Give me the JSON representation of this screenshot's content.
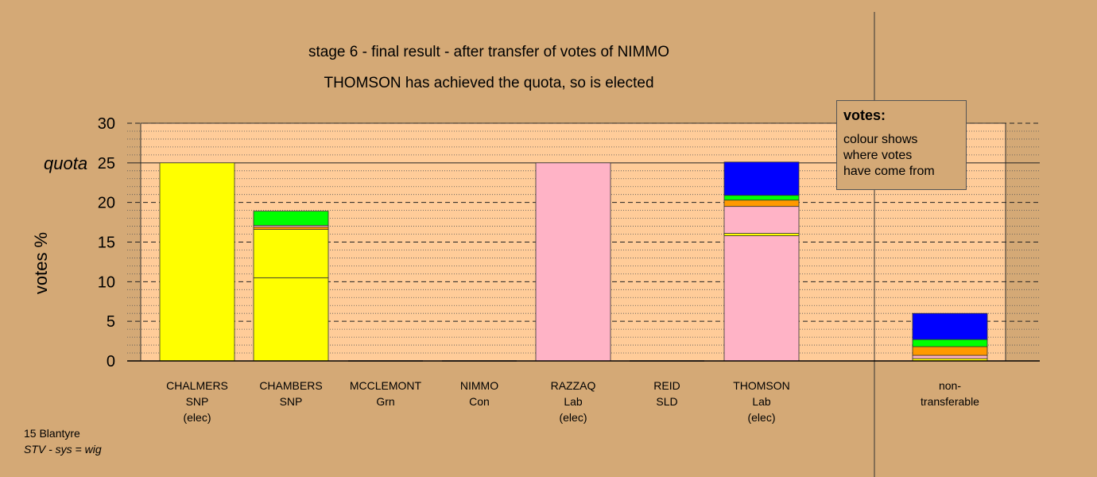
{
  "titles": {
    "line1": "stage 6 - final result - after transfer of votes of NIMMO",
    "line2": "THOMSON has achieved the quota, so is elected"
  },
  "legend": {
    "title": "votes:",
    "lines": [
      "colour shows",
      "where votes",
      "have come from"
    ]
  },
  "footer": {
    "line1": "15 Blantyre",
    "line2": "STV - sys = wig"
  },
  "colors": {
    "background": "#d4a976",
    "plot_background": "#ffcc99",
    "SNP": "#ffff00",
    "Lab": "#ffb3c6",
    "Grn": "#00ff00",
    "Con": "#0000ff",
    "SLD": "#ff9900"
  },
  "chart_data": {
    "type": "bar",
    "stacked": true,
    "ylabel": "votes %",
    "ylim": [
      0,
      30
    ],
    "yticks": [
      0,
      5,
      10,
      15,
      20,
      25,
      30
    ],
    "quota": 25,
    "quota_label": "quota",
    "categories": [
      {
        "name": "CHALMERS",
        "party": "SNP",
        "note": "(elec)",
        "segments": [
          {
            "from": "SNP",
            "value": 25.0
          }
        ]
      },
      {
        "name": "CHAMBERS",
        "party": "SNP",
        "note": "",
        "segments": [
          {
            "from": "SNP",
            "value": 10.5
          },
          {
            "from": "SNP",
            "value": 6.1
          },
          {
            "from": "SLD",
            "value": 0.3
          },
          {
            "from": "Lab",
            "value": 0.2
          },
          {
            "from": "Grn",
            "value": 1.8
          }
        ]
      },
      {
        "name": "MCCLEMONT",
        "party": "Grn",
        "note": "",
        "segments": []
      },
      {
        "name": "NIMMO",
        "party": "Con",
        "note": "",
        "segments": []
      },
      {
        "name": "RAZZAQ",
        "party": "Lab",
        "note": "(elec)",
        "segments": [
          {
            "from": "Lab",
            "value": 25.0
          }
        ]
      },
      {
        "name": "REID",
        "party": "SLD",
        "note": "",
        "segments": []
      },
      {
        "name": "THOMSON",
        "party": "Lab",
        "note": "(elec)",
        "segments": [
          {
            "from": "Lab",
            "value": 15.8
          },
          {
            "from": "SNP",
            "value": 0.3
          },
          {
            "from": "Lab",
            "value": 3.4
          },
          {
            "from": "SLD",
            "value": 0.8
          },
          {
            "from": "Grn",
            "value": 0.6
          },
          {
            "from": "Con",
            "value": 4.2
          }
        ]
      },
      {
        "name": "non-",
        "party": "transferable",
        "note": "",
        "segments": [
          {
            "from": "SNP",
            "value": 0.3
          },
          {
            "from": "Lab",
            "value": 0.4
          },
          {
            "from": "SLD",
            "value": 1.1
          },
          {
            "from": "Grn",
            "value": 0.9
          },
          {
            "from": "Con",
            "value": 3.3
          }
        ]
      }
    ]
  }
}
